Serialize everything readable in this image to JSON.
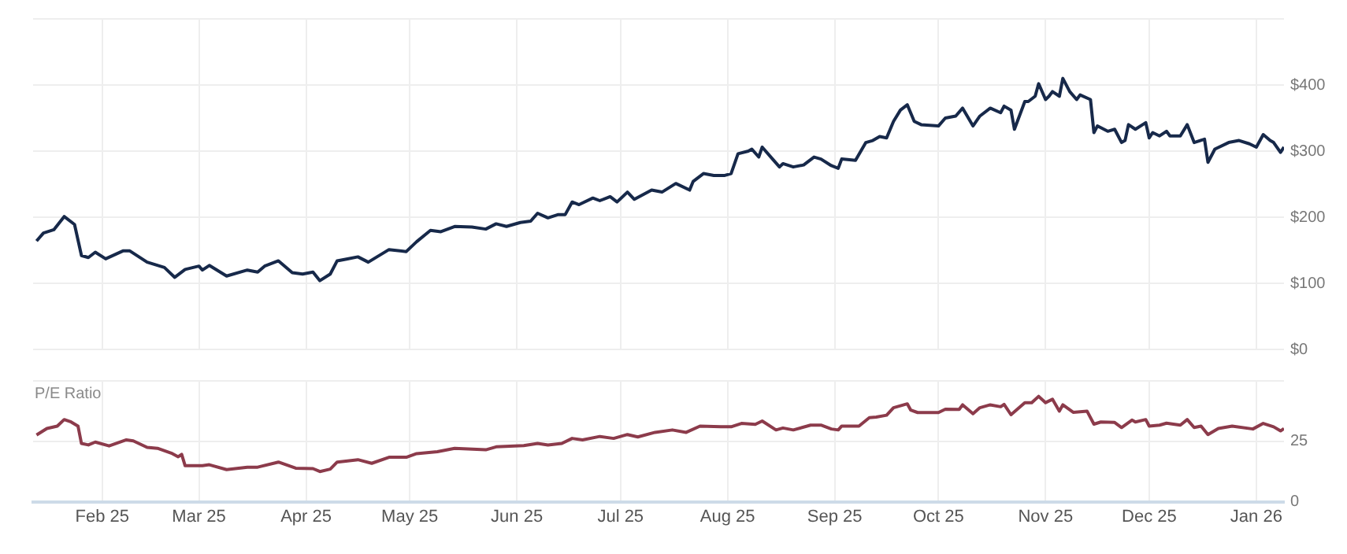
{
  "chart_data": [
    {
      "type": "line",
      "x": [
        "2025-01-13",
        "2025-01-15",
        "2025-01-18",
        "2025-01-21",
        "2025-01-24",
        "2025-01-26",
        "2025-01-28",
        "2025-01-30",
        "2025-02-02",
        "2025-02-07",
        "2025-02-09",
        "2025-02-14",
        "2025-02-19",
        "2025-02-22",
        "2025-02-25",
        "2025-03-01",
        "2025-03-02",
        "2025-03-04",
        "2025-03-09",
        "2025-03-15",
        "2025-03-18",
        "2025-03-20",
        "2025-03-24",
        "2025-03-28",
        "2025-03-31",
        "2025-04-03",
        "2025-04-05",
        "2025-04-08",
        "2025-04-10",
        "2025-04-13",
        "2025-04-16",
        "2025-04-19",
        "2025-04-25",
        "2025-04-30",
        "2025-05-03",
        "2025-05-07",
        "2025-05-10",
        "2025-05-14",
        "2025-05-19",
        "2025-05-23",
        "2025-05-26",
        "2025-05-29",
        "2025-06-02",
        "2025-06-05",
        "2025-06-07",
        "2025-06-10",
        "2025-06-13",
        "2025-06-15",
        "2025-06-17",
        "2025-06-19",
        "2025-06-23",
        "2025-06-25",
        "2025-06-28",
        "2025-06-30",
        "2025-07-03",
        "2025-07-05",
        "2025-07-10",
        "2025-07-13",
        "2025-07-17",
        "2025-07-21",
        "2025-07-22",
        "2025-07-25",
        "2025-07-28",
        "2025-07-31",
        "2025-08-02",
        "2025-08-04",
        "2025-08-07",
        "2025-08-08",
        "2025-08-10",
        "2025-08-11",
        "2025-08-14",
        "2025-08-16",
        "2025-08-17",
        "2025-08-20",
        "2025-08-23",
        "2025-08-26",
        "2025-08-28",
        "2025-08-31",
        "2025-09-02",
        "2025-09-03",
        "2025-09-07",
        "2025-09-10",
        "2025-09-12",
        "2025-09-14",
        "2025-09-16",
        "2025-09-18",
        "2025-09-20",
        "2025-09-22",
        "2025-09-24",
        "2025-09-26",
        "2025-10-01",
        "2025-10-03",
        "2025-10-06",
        "2025-10-08",
        "2025-10-11",
        "2025-10-13",
        "2025-10-16",
        "2025-10-19",
        "2025-10-20",
        "2025-10-22",
        "2025-10-23",
        "2025-10-26",
        "2025-10-27",
        "2025-10-29",
        "2025-10-30",
        "2025-11-01",
        "2025-11-02",
        "2025-11-03",
        "2025-11-05",
        "2025-11-06",
        "2025-11-08",
        "2025-11-10",
        "2025-11-11",
        "2025-11-14",
        "2025-11-15",
        "2025-11-16",
        "2025-11-19",
        "2025-11-21",
        "2025-11-23",
        "2025-11-24",
        "2025-11-25",
        "2025-11-27",
        "2025-11-30",
        "2025-12-01",
        "2025-12-02",
        "2025-12-04",
        "2025-12-06",
        "2025-12-07",
        "2025-12-10",
        "2025-12-12",
        "2025-12-14",
        "2025-12-17",
        "2025-12-18",
        "2025-12-20",
        "2025-12-24",
        "2025-12-27",
        "2025-12-30",
        "2026-01-01",
        "2026-01-03",
        "2026-01-05",
        "2026-01-06",
        "2026-01-08",
        "2026-01-09"
      ],
      "series": [
        {
          "color": "#17294a",
          "values": [
            164,
            176,
            181,
            201,
            189,
            142,
            139,
            147,
            137,
            149,
            149,
            132,
            124,
            109,
            121,
            126,
            120,
            127,
            111,
            120,
            117,
            126,
            134,
            116,
            114,
            117,
            104,
            114,
            134,
            137,
            140,
            132,
            151,
            148,
            163,
            180,
            178,
            186,
            185,
            182,
            190,
            186,
            192,
            194,
            206,
            199,
            204,
            204,
            223,
            219,
            229,
            225,
            231,
            223,
            238,
            227,
            241,
            238,
            251,
            241,
            254,
            266,
            263,
            263,
            266,
            296,
            300,
            303,
            291,
            306,
            288,
            276,
            281,
            276,
            279,
            291,
            288,
            278,
            274,
            288,
            286,
            313,
            316,
            322,
            320,
            345,
            362,
            370,
            345,
            340,
            338,
            350,
            353,
            365,
            338,
            353,
            365,
            358,
            368,
            362,
            333,
            375,
            375,
            383,
            402,
            378,
            383,
            390,
            383,
            410,
            390,
            378,
            385,
            378,
            328,
            338,
            330,
            333,
            313,
            316,
            340,
            333,
            343,
            320,
            328,
            323,
            330,
            323,
            323,
            340,
            313,
            318,
            283,
            303,
            313,
            316,
            311,
            306,
            325,
            316,
            313,
            298,
            306
          ]
        }
      ],
      "xlim": [
        "2025-01-12",
        "2026-01-09"
      ],
      "xticks": [
        {
          "value": "2025-02-01",
          "label": null
        },
        {
          "value": "2025-03-01",
          "label": null
        },
        {
          "value": "2025-04-01",
          "label": null
        },
        {
          "value": "2025-05-01",
          "label": null
        },
        {
          "value": "2025-06-01",
          "label": null
        },
        {
          "value": "2025-07-01",
          "label": null
        },
        {
          "value": "2025-08-01",
          "label": null
        },
        {
          "value": "2025-09-01",
          "label": null
        },
        {
          "value": "2025-10-01",
          "label": null
        },
        {
          "value": "2025-11-01",
          "label": null
        },
        {
          "value": "2025-12-01",
          "label": null
        },
        {
          "value": "2026-01-01",
          "label": null
        }
      ],
      "ylim": [
        0,
        500
      ],
      "yticks": [
        {
          "value": 0,
          "label": "$0"
        },
        {
          "value": 100,
          "label": "$100"
        },
        {
          "value": 200,
          "label": "$200"
        },
        {
          "value": 300,
          "label": "$300"
        },
        {
          "value": 400,
          "label": "$400"
        },
        {
          "value": 500,
          "label": null
        }
      ],
      "grid": true,
      "tick_labels": "y"
    },
    {
      "type": "line",
      "title": "P/E Ratio",
      "x": [
        "2025-01-13",
        "2025-01-16",
        "2025-01-19",
        "2025-01-21",
        "2025-01-23",
        "2025-01-25",
        "2025-01-26",
        "2025-01-28",
        "2025-01-30",
        "2025-02-03",
        "2025-02-08",
        "2025-02-10",
        "2025-02-14",
        "2025-02-17",
        "2025-02-21",
        "2025-02-23",
        "2025-02-24",
        "2025-02-25",
        "2025-03-02",
        "2025-03-04",
        "2025-03-09",
        "2025-03-15",
        "2025-03-18",
        "2025-03-24",
        "2025-03-29",
        "2025-04-03",
        "2025-04-05",
        "2025-04-08",
        "2025-04-10",
        "2025-04-16",
        "2025-04-20",
        "2025-04-25",
        "2025-04-30",
        "2025-05-03",
        "2025-05-09",
        "2025-05-14",
        "2025-05-23",
        "2025-05-26",
        "2025-06-03",
        "2025-06-07",
        "2025-06-10",
        "2025-06-14",
        "2025-06-17",
        "2025-06-20",
        "2025-06-25",
        "2025-06-29",
        "2025-07-03",
        "2025-07-06",
        "2025-07-11",
        "2025-07-16",
        "2025-07-20",
        "2025-07-24",
        "2025-07-30",
        "2025-08-02",
        "2025-08-05",
        "2025-08-09",
        "2025-08-11",
        "2025-08-15",
        "2025-08-17",
        "2025-08-20",
        "2025-08-25",
        "2025-08-28",
        "2025-08-31",
        "2025-09-02",
        "2025-09-03",
        "2025-09-08",
        "2025-09-11",
        "2025-09-13",
        "2025-09-16",
        "2025-09-18",
        "2025-09-22",
        "2025-09-23",
        "2025-09-25",
        "2025-10-01",
        "2025-10-03",
        "2025-10-07",
        "2025-10-08",
        "2025-10-11",
        "2025-10-13",
        "2025-10-16",
        "2025-10-19",
        "2025-10-20",
        "2025-10-22",
        "2025-10-26",
        "2025-10-28",
        "2025-10-30",
        "2025-11-01",
        "2025-11-03",
        "2025-11-05",
        "2025-11-06",
        "2025-11-09",
        "2025-11-13",
        "2025-11-15",
        "2025-11-17",
        "2025-11-21",
        "2025-11-23",
        "2025-11-26",
        "2025-11-27",
        "2025-11-30",
        "2025-12-01",
        "2025-12-04",
        "2025-12-06",
        "2025-12-10",
        "2025-12-12",
        "2025-12-14",
        "2025-12-16",
        "2025-12-18",
        "2025-12-21",
        "2025-12-25",
        "2025-12-31",
        "2026-01-03",
        "2026-01-06",
        "2026-01-08",
        "2026-01-09"
      ],
      "series": [
        {
          "color": "#8c3b4b",
          "values": [
            27.6,
            30.3,
            31.3,
            34,
            33,
            31.3,
            24.1,
            23.5,
            24.7,
            23.1,
            25.6,
            25.2,
            22.5,
            22.1,
            20.1,
            18.6,
            19.6,
            14.9,
            14.9,
            15.3,
            13.3,
            14.3,
            14.3,
            16.4,
            13.9,
            13.7,
            12.5,
            13.5,
            16.4,
            17.4,
            15.9,
            18.4,
            18.4,
            19.9,
            20.7,
            22.1,
            21.5,
            22.7,
            23.2,
            24.1,
            23.5,
            24.1,
            26.2,
            25.6,
            27,
            26.2,
            27.8,
            26.8,
            28.7,
            29.7,
            28.7,
            31.3,
            31,
            31,
            32.4,
            32,
            33.4,
            29.7,
            30.5,
            29.7,
            31.7,
            31.7,
            30.1,
            29.7,
            31.3,
            31.3,
            34.8,
            35,
            35.8,
            38.9,
            40.5,
            37.9,
            36.9,
            36.9,
            38.3,
            38.2,
            40.1,
            36.4,
            38.9,
            40.1,
            39.3,
            40.3,
            36,
            41,
            41,
            43.6,
            41,
            42.4,
            37.5,
            40.1,
            37,
            37.5,
            32.1,
            33,
            32.8,
            30.7,
            33.8,
            33,
            34,
            31.3,
            31.7,
            32.5,
            31.7,
            34,
            30.7,
            31.3,
            27.8,
            30.3,
            31.3,
            30.1,
            32.4,
            31,
            29.3,
            30.3
          ]
        }
      ],
      "xlim": [
        "2025-01-12",
        "2026-01-09"
      ],
      "xticks": [
        {
          "value": "2025-02-01",
          "label": "Feb 25"
        },
        {
          "value": "2025-03-01",
          "label": "Mar 25"
        },
        {
          "value": "2025-04-01",
          "label": "Apr 25"
        },
        {
          "value": "2025-05-01",
          "label": "May 25"
        },
        {
          "value": "2025-06-01",
          "label": "Jun 25"
        },
        {
          "value": "2025-07-01",
          "label": "Jul 25"
        },
        {
          "value": "2025-08-01",
          "label": "Aug 25"
        },
        {
          "value": "2025-09-01",
          "label": "Sep 25"
        },
        {
          "value": "2025-10-01",
          "label": "Oct 25"
        },
        {
          "value": "2025-11-01",
          "label": "Nov 25"
        },
        {
          "value": "2025-12-01",
          "label": "Dec 25"
        },
        {
          "value": "2026-01-01",
          "label": "Jan 26"
        }
      ],
      "ylim": [
        0,
        50
      ],
      "yticks": [
        0,
        25,
        {
          "value": 50,
          "label": null
        }
      ],
      "grid": true
    }
  ]
}
